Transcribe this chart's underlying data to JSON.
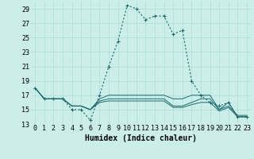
{
  "xlabel": "Humidex (Indice chaleur)",
  "bg_color": "#cceee8",
  "grid_color": "#aaddda",
  "line_color": "#1a6b6b",
  "ylim": [
    13,
    30
  ],
  "xlim": [
    -0.5,
    23.5
  ],
  "yticks": [
    13,
    15,
    17,
    19,
    21,
    23,
    25,
    27,
    29
  ],
  "xticks": [
    0,
    1,
    2,
    3,
    4,
    5,
    6,
    7,
    8,
    9,
    10,
    11,
    12,
    13,
    14,
    15,
    16,
    17,
    18,
    19,
    20,
    21,
    22,
    23
  ],
  "series": [
    {
      "x": [
        0,
        1,
        2,
        3,
        4,
        5,
        6,
        7,
        8,
        9,
        10,
        11,
        12,
        13,
        14,
        15,
        16,
        17,
        18,
        19,
        20,
        21,
        22,
        23
      ],
      "y": [
        18,
        16.5,
        16.5,
        16.5,
        15,
        15,
        13.5,
        17,
        21,
        24.5,
        29.5,
        29,
        27.5,
        28,
        28,
        25.5,
        26,
        19,
        17,
        16,
        15.5,
        16,
        14,
        14
      ],
      "dashed": true
    },
    {
      "x": [
        0,
        1,
        2,
        3,
        4,
        5,
        6,
        7,
        8,
        9,
        10,
        11,
        12,
        13,
        14,
        15,
        16,
        17,
        18,
        19,
        20,
        21,
        22,
        23
      ],
      "y": [
        18,
        16.5,
        16.5,
        16.5,
        15.5,
        15.5,
        15,
        16.5,
        17,
        17,
        17,
        17,
        17,
        17,
        17,
        16.5,
        16.5,
        17,
        17,
        17,
        15,
        16,
        14,
        14
      ],
      "dashed": false
    },
    {
      "x": [
        0,
        1,
        2,
        3,
        4,
        5,
        6,
        7,
        8,
        9,
        10,
        11,
        12,
        13,
        14,
        15,
        16,
        17,
        18,
        19,
        20,
        21,
        22,
        23
      ],
      "y": [
        18,
        16.5,
        16.5,
        16.5,
        15.5,
        15.5,
        15,
        16.2,
        16.5,
        16.5,
        16.5,
        16.5,
        16.5,
        16.5,
        16.5,
        15.5,
        15.5,
        16,
        16.5,
        16.5,
        15,
        15.5,
        14.2,
        14.2
      ],
      "dashed": false
    },
    {
      "x": [
        0,
        1,
        2,
        3,
        4,
        5,
        6,
        7,
        8,
        9,
        10,
        11,
        12,
        13,
        14,
        15,
        16,
        17,
        18,
        19,
        20,
        21,
        22,
        23
      ],
      "y": [
        18,
        16.5,
        16.5,
        16.5,
        15.5,
        15.5,
        15,
        16.0,
        16.2,
        16.2,
        16.2,
        16.2,
        16.2,
        16.2,
        16.2,
        15.3,
        15.3,
        15.7,
        16.0,
        16.0,
        14.8,
        15.3,
        14.0,
        14.0
      ],
      "dashed": false
    }
  ],
  "xlabel_fontsize": 7,
  "tick_fontsize": 6
}
